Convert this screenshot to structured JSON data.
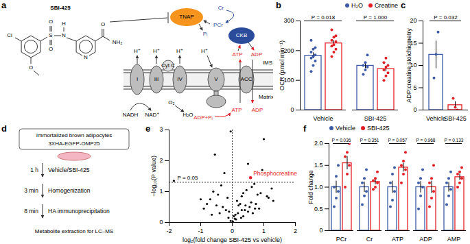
{
  "panels": [
    "a",
    "b",
    "c",
    "d",
    "e",
    "f"
  ],
  "diagram_a": {
    "compound": "SBI-425",
    "cl": "Cl",
    "s": "S",
    "o_s1": "O",
    "o_s2": "O",
    "nh_n": "N",
    "nh_h": "H",
    "n_ring": "N",
    "o_amide": "O",
    "nh2": "NH₂",
    "o_methoxy": "O",
    "tnap": "TNAP",
    "ckb": "CKB",
    "cr": "Cr",
    "pcr": "PCr",
    "pi": "Pᵢ",
    "atp_top": "ATP",
    "adp_top": "ADP",
    "complex_i": "I",
    "complex_iii": "III",
    "cyt_c": "Cyt C",
    "complex_iv": "IV",
    "complex_v": "V",
    "acc": "ACC",
    "h_plus": "H⁺",
    "nadh": "NADH",
    "nad": "NAD⁺",
    "o2": "O₂",
    "h2o": "H₂O",
    "adp_pi": "ADP+Pᵢ",
    "atp_matrix": "ATP",
    "adp_matrix": "ADP",
    "ims": "IMS",
    "matrix": "Matrix"
  },
  "diagram_d": {
    "cell_line": "Immortalized brown adipocytes",
    "construct": "3XHA-EGFP-OMP25",
    "steps": [
      {
        "time": "1 h",
        "action": "Vehicle/SBI-425"
      },
      {
        "time": "3 min",
        "action": "Homogenization"
      },
      {
        "time": "8 min",
        "action": "HA immunoprecipitation"
      }
    ],
    "final": "Metabolite extraction for LC–MS"
  },
  "chart_data": [
    {
      "panel": "b",
      "type": "bar",
      "categories": [
        "Vehicle",
        "SBI-425"
      ],
      "series": [
        {
          "name": "H₂O",
          "color": "#3c5aa6",
          "values": [
            183,
            149
          ],
          "errors": [
            10,
            9
          ],
          "points": [
            [
              130,
              150,
              165,
              175,
              180,
              185,
              195,
              205,
              210,
              235
            ],
            [
              120,
              135,
              145,
              150,
              160,
              185
            ]
          ]
        },
        {
          "name": "Creatine",
          "color": "#e31f26",
          "values": [
            224.5,
            138
          ],
          "errors": [
            9,
            9
          ],
          "points": [
            [
              180,
              195,
              205,
              215,
              220,
              230,
              235,
              245,
              250,
              270
            ],
            [
              100,
              115,
              125,
              135,
              145,
              150,
              160,
              175
            ]
          ]
        }
      ],
      "ylabel": "OCR (pmol min⁻¹)",
      "ylim": [
        0,
        300
      ],
      "yticks": [
        0,
        100,
        200,
        300
      ],
      "annotations": [
        "P = 0.018",
        "P = 1.000"
      ],
      "legend": "top-right"
    },
    {
      "panel": "c",
      "type": "bar",
      "categories": [
        "Vehicle",
        "SBI-425"
      ],
      "colors": [
        "#3c5aa6",
        "#e31f26"
      ],
      "values": [
        12.4,
        1.1
      ],
      "errors": [
        3.1,
        0.8
      ],
      "points": [
        [
          7.2,
          12.5,
          17.5
        ],
        [
          2.6,
          0.6,
          0.0
        ]
      ],
      "ylabel": "ADP:creatine stoichiometry",
      "ylim": [
        0,
        20
      ],
      "yticks": [
        0,
        5,
        10,
        15,
        20
      ],
      "annotations": [
        "P = 0.032"
      ]
    },
    {
      "panel": "e",
      "type": "scatter",
      "x": [
        -1.85,
        -0.55,
        -0.05,
        1.0,
        0.5,
        0.95,
        -0.25,
        1.25,
        0.7,
        0.62,
        0.45,
        0.35,
        -0.35,
        -0.45,
        0.3,
        0.15,
        -0.15,
        0.2,
        0.25,
        -0.6,
        -0.7,
        0.8,
        0.9,
        1.1,
        1.3,
        0.55,
        0.4,
        -0.1,
        0.05,
        0.1,
        -0.2,
        -0.3,
        0.6,
        0.75,
        0.85,
        -0.5,
        -0.8,
        -1.0,
        0.65,
        0.35,
        0.12,
        -0.05,
        0.02,
        0.08,
        -0.12,
        0.18,
        0.28,
        -0.4,
        0.5,
        0.42,
        1.15,
        -0.9,
        0.72,
        -0.65,
        0.3
      ],
      "values": [
        1.35,
        2.2,
        2.95,
        2.7,
        1.9,
        1.7,
        1.6,
        1.1,
        1.25,
        1.15,
        1.05,
        0.95,
        1.2,
        0.9,
        0.85,
        0.7,
        0.8,
        0.55,
        0.6,
        1.0,
        0.75,
        0.9,
        0.95,
        0.85,
        0.7,
        0.5,
        0.4,
        0.35,
        0.2,
        0.25,
        0.4,
        0.5,
        0.65,
        0.6,
        0.45,
        0.55,
        0.6,
        0.75,
        0.3,
        0.2,
        0.1,
        0.05,
        0.02,
        0.12,
        0.15,
        0.3,
        0.15,
        0.3,
        0.35,
        0.55,
        0.8,
        0.45,
        0.45,
        0.25,
        0.4
      ],
      "color": "#000000",
      "highlight": {
        "label": "Phosphocreatine",
        "x": 0.58,
        "y": 1.45,
        "color": "#e31f26"
      },
      "reference_lines": {
        "x": 0,
        "y": 1.301,
        "label": "P = 0.05"
      },
      "xlabel": "log₂(fold change SBI-425 vs vehicle)",
      "ylabel": "−log₁₀(P value)",
      "xlim": [
        -2,
        2
      ],
      "xticks": [
        -2,
        -1,
        0,
        1,
        2
      ],
      "ylim": [
        0,
        3
      ],
      "yticks": [
        0,
        1,
        2,
        3
      ]
    },
    {
      "panel": "f",
      "type": "bar",
      "categories": [
        "PCr",
        "Cr",
        "ATP",
        "ADP",
        "AMP"
      ],
      "series": [
        {
          "name": "Vehicle",
          "color": "#3c5aa6",
          "values": [
            1.0,
            1.0,
            1.0,
            1.0,
            1.0
          ],
          "errors": [
            0.14,
            0.12,
            0.14,
            0.13,
            0.11
          ],
          "points": [
            [
              0.55,
              0.75,
              0.9,
              1.0,
              1.25,
              1.5
            ],
            [
              0.6,
              0.8,
              0.9,
              1.1,
              1.2,
              1.4
            ],
            [
              0.55,
              0.7,
              0.9,
              1.1,
              1.3,
              1.45
            ],
            [
              0.5,
              0.8,
              1.0,
              1.1,
              1.2,
              1.4
            ],
            [
              0.6,
              0.8,
              0.95,
              1.1,
              1.2,
              1.35
            ]
          ]
        },
        {
          "name": "SBI-425",
          "color": "#e31f26",
          "values": [
            1.55,
            1.12,
            1.45,
            1.0,
            1.23
          ],
          "errors": [
            0.15,
            0.06,
            0.1,
            0.14,
            0.07
          ],
          "points": [
            [
              1.0,
              1.3,
              1.5,
              1.7,
              1.8,
              2.0
            ],
            [
              0.95,
              1.0,
              1.1,
              1.15,
              1.2,
              1.35
            ],
            [
              1.1,
              1.3,
              1.4,
              1.5,
              1.6,
              1.8
            ],
            [
              0.55,
              0.75,
              0.9,
              1.1,
              1.2,
              1.5
            ],
            [
              1.0,
              1.1,
              1.2,
              1.3,
              1.35,
              1.45
            ]
          ]
        }
      ],
      "ylabel": "Fold change",
      "ylim": [
        0,
        2
      ],
      "yticks": [
        0,
        0.5,
        {
          "value": 1,
          "label": "1.0"
        },
        1.5,
        {
          "value": 2,
          "label": "2.0"
        }
      ],
      "annotations": [
        "P = 0.036",
        "P = 0.351",
        "P = 0.057",
        "P = 0.968",
        "P = 0.133"
      ],
      "legend": "top-left"
    }
  ]
}
